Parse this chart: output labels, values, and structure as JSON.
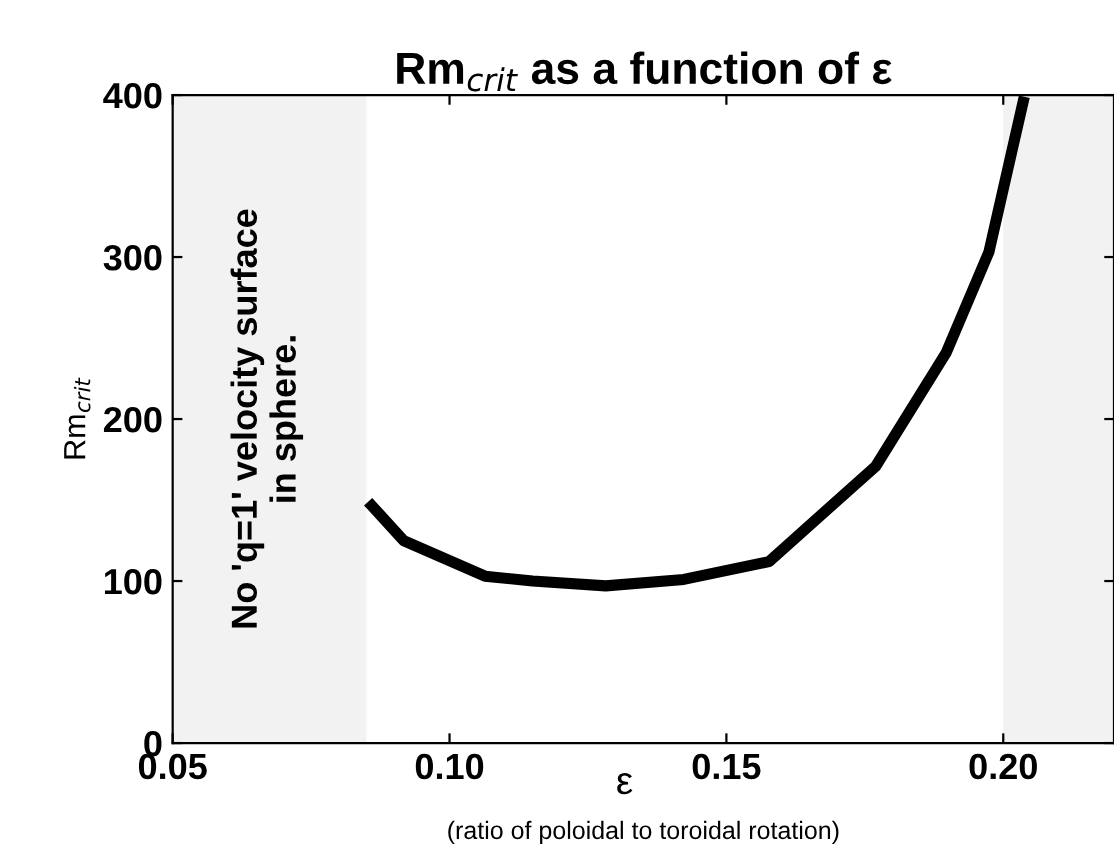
{
  "chart_data": {
    "type": "line",
    "title": "Rm$_{crit}$ as a function of ε",
    "xlabel": "ε",
    "ylabel": "Rm$_{crit}$",
    "annotations": [
      "(ratio of poloidal to toroidal rotation)",
      "No 'q=1' velocity surface\nin sphere."
    ],
    "x": [
      0.0853,
      0.0917,
      0.1064,
      0.115,
      0.1282,
      0.1423,
      0.1577,
      0.177,
      0.1897,
      0.1974,
      0.2038
    ],
    "series": [
      {
        "color": "#000000",
        "values": [
          149,
          125,
          103,
          100,
          97,
          101,
          112,
          171,
          241,
          303,
          399
        ]
      }
    ],
    "xlim": [
      0.05,
      0.22
    ],
    "ylim": [
      0,
      400
    ],
    "bands": [
      {
        "axis": "x",
        "from": 0.05,
        "to": 0.085,
        "color": "#f2f2f2"
      },
      {
        "axis": "x",
        "from": 0.2,
        "to": 0.22,
        "color": "#f2f2f2"
      }
    ],
    "xticks": [
      {
        "value": 0.05,
        "label": "0.05"
      },
      {
        "value": 0.1,
        "label": "0.10"
      },
      {
        "value": 0.15,
        "label": "0.15"
      },
      {
        "value": 0.2,
        "label": "0.20"
      }
    ],
    "yticks": [
      0,
      100,
      200,
      300,
      400
    ],
    "grid": false,
    "legend": false,
    "marker": "none",
    "line_style": "solid"
  }
}
